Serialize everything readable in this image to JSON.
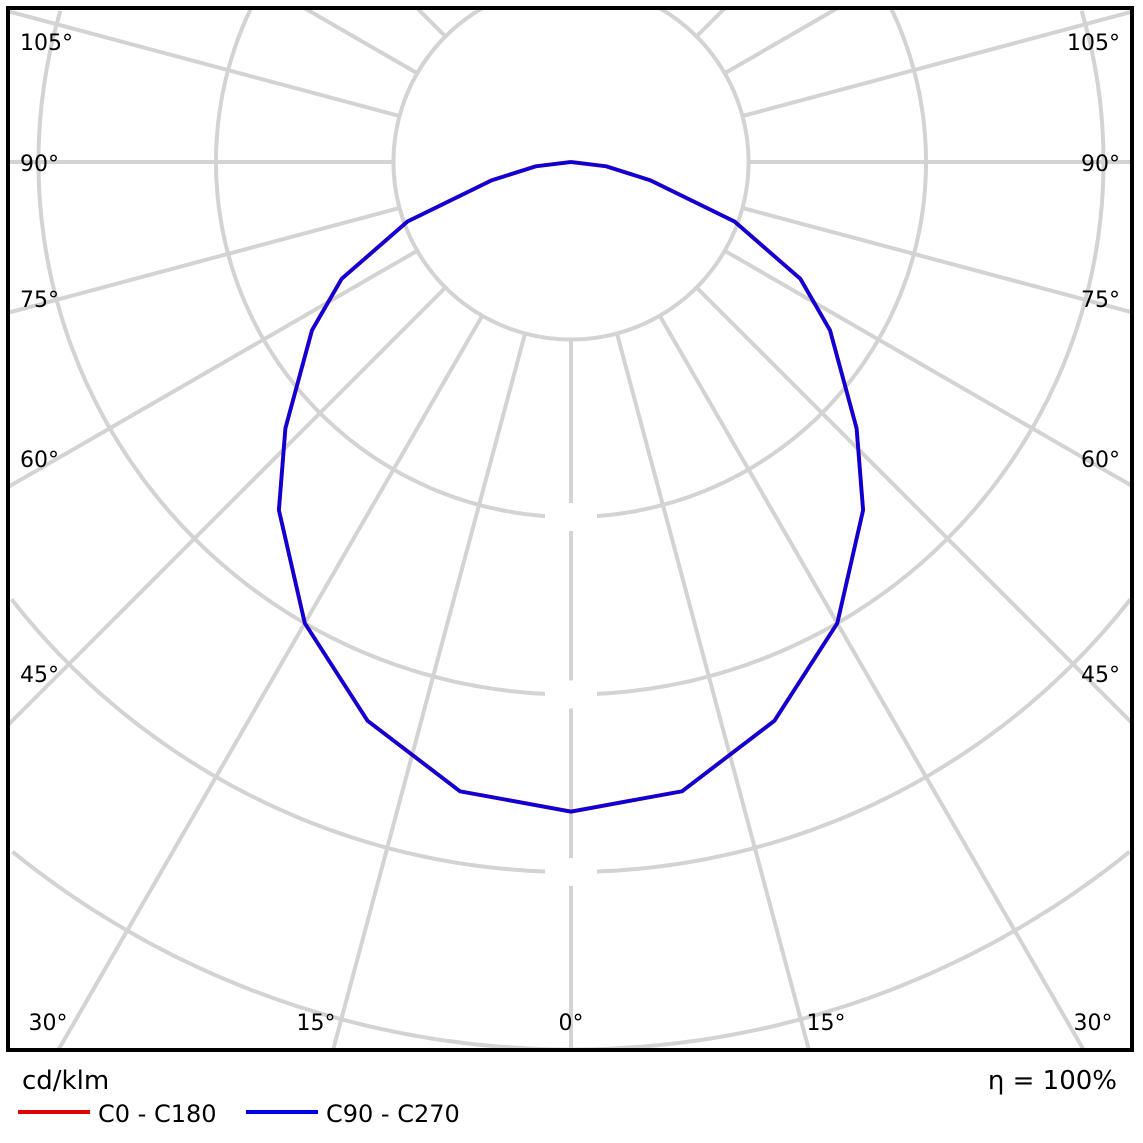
{
  "chart_data": {
    "type": "polar",
    "unit": "cd/klm",
    "efficiency_label": "η = 100%",
    "angle_labels_left": [
      "105°",
      "90°",
      "75°",
      "60°",
      "45°"
    ],
    "angle_labels_right": [
      "105°",
      "90°",
      "75°",
      "60°",
      "45°"
    ],
    "angle_labels_bottom": [
      "30°",
      "15°",
      "0°",
      "15°",
      "30°"
    ],
    "grid": true,
    "radial_rings": 5,
    "legend_position": "bottom-left",
    "series": [
      {
        "name": "C0 - C180",
        "color": "#e00000",
        "angles": [
          0,
          10,
          20,
          30,
          40,
          47,
          57,
          63,
          70,
          77,
          83,
          90
        ],
        "values": [
          3.66,
          3.6,
          3.35,
          3.0,
          2.56,
          2.2,
          1.74,
          1.45,
          0.98,
          0.46,
          0.2,
          0
        ]
      },
      {
        "name": "C90 - C270",
        "color": "#0000e0",
        "angles": [
          0,
          10,
          20,
          30,
          40,
          47,
          57,
          63,
          70,
          77,
          83,
          90
        ],
        "values": [
          3.66,
          3.6,
          3.35,
          3.0,
          2.56,
          2.2,
          1.74,
          1.45,
          0.98,
          0.46,
          0.2,
          0
        ]
      }
    ]
  }
}
